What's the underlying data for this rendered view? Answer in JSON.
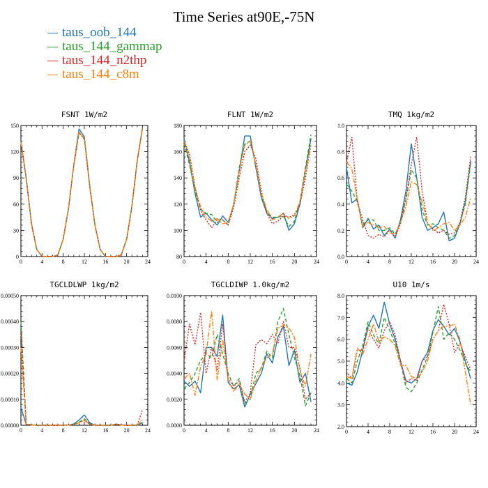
{
  "title": "Time Series at90E,-75N",
  "legend": [
    {
      "name": "taus_oob_144",
      "color": "#1f77b4",
      "dash": "solid"
    },
    {
      "name": "taus_144_gammap",
      "color": "#2ca02c",
      "dash": "dashed"
    },
    {
      "name": "taus_144_n2thp",
      "color": "#d62728",
      "dash": "dotted"
    },
    {
      "name": "taus_144_c8m",
      "color": "#ff7f0e",
      "dash": "dashdot"
    }
  ],
  "chart_data": [
    {
      "type": "line",
      "title": "FSNT",
      "units": "1W/m2",
      "xlim": [
        0,
        24
      ],
      "xticks": [
        0,
        4,
        8,
        12,
        16,
        20,
        24
      ],
      "ylim": [
        0,
        150
      ],
      "yticks": [
        "0",
        "30",
        "60",
        "90",
        "120",
        "150"
      ],
      "x": [
        0,
        1,
        2,
        3,
        4,
        5,
        6,
        7,
        8,
        9,
        10,
        11,
        12,
        13,
        14,
        15,
        16,
        17,
        18,
        19,
        20,
        21,
        22,
        23
      ],
      "series": [
        {
          "name": "taus_oob_144",
          "values": [
            132,
            90,
            38,
            8,
            0,
            0,
            0,
            2,
            20,
            55,
            105,
            146,
            137,
            82,
            36,
            8,
            0,
            0,
            0,
            2,
            20,
            58,
            110,
            148
          ]
        },
        {
          "name": "taus_144_gammap",
          "values": [
            131,
            89,
            37,
            8,
            0,
            0,
            0,
            2,
            20,
            55,
            104,
            142,
            135,
            81,
            36,
            8,
            0,
            0,
            0,
            2,
            20,
            57,
            109,
            147
          ]
        },
        {
          "name": "taus_144_n2thp",
          "values": [
            131,
            89,
            37,
            8,
            0,
            0,
            0,
            2,
            20,
            55,
            104,
            142,
            134,
            81,
            36,
            8,
            0,
            0,
            0,
            2,
            20,
            57,
            109,
            147
          ]
        },
        {
          "name": "taus_144_c8m",
          "values": [
            131,
            89,
            37,
            8,
            0,
            0,
            0,
            2,
            20,
            55,
            104,
            143,
            135,
            81,
            36,
            8,
            0,
            0,
            0,
            2,
            20,
            57,
            109,
            147
          ]
        }
      ]
    },
    {
      "type": "line",
      "title": "FLNT",
      "units": "1W/m2",
      "xlim": [
        0,
        24
      ],
      "xticks": [
        0,
        4,
        8,
        12,
        16,
        20,
        24
      ],
      "ylim": [
        80,
        180
      ],
      "yticks": [
        "80",
        "100",
        "120",
        "140",
        "160",
        "180"
      ],
      "x": [
        0,
        1,
        2,
        3,
        4,
        5,
        6,
        7,
        8,
        9,
        10,
        11,
        12,
        13,
        14,
        15,
        16,
        17,
        18,
        19,
        20,
        21,
        22,
        23
      ],
      "series": [
        {
          "name": "taus_oob_144",
          "values": [
            170,
            152,
            128,
            110,
            113,
            108,
            104,
            111,
            106,
            120,
            145,
            172,
            172,
            148,
            125,
            113,
            109,
            110,
            113,
            100,
            105,
            120,
            146,
            170
          ]
        },
        {
          "name": "taus_144_gammap",
          "values": [
            166,
            150,
            130,
            116,
            113,
            112,
            106,
            108,
            104,
            120,
            148,
            166,
            168,
            150,
            127,
            114,
            110,
            110,
            111,
            103,
            107,
            122,
            148,
            173
          ]
        },
        {
          "name": "taus_144_n2thp",
          "values": [
            168,
            158,
            133,
            115,
            108,
            102,
            108,
            108,
            104,
            118,
            140,
            160,
            165,
            155,
            130,
            113,
            105,
            107,
            111,
            110,
            112,
            120,
            140,
            165
          ]
        },
        {
          "name": "taus_144_c8m",
          "values": [
            168,
            155,
            132,
            118,
            110,
            107,
            109,
            105,
            106,
            120,
            145,
            165,
            168,
            150,
            128,
            116,
            108,
            110,
            113,
            109,
            111,
            122,
            145,
            165
          ]
        }
      ]
    },
    {
      "type": "line",
      "title": "TMQ",
      "units": "1kg/m2",
      "xlim": [
        0,
        24
      ],
      "xticks": [
        0,
        4,
        8,
        12,
        16,
        20,
        24
      ],
      "ylim": [
        0.0,
        1.0
      ],
      "yticks": [
        "0.0",
        "0.2",
        "0.4",
        "0.6",
        "0.8",
        "1.0"
      ],
      "x": [
        0,
        1,
        2,
        3,
        4,
        5,
        6,
        7,
        8,
        9,
        10,
        11,
        12,
        13,
        14,
        15,
        16,
        17,
        18,
        19,
        20,
        21,
        22,
        23
      ],
      "series": [
        {
          "name": "taus_oob_144",
          "values": [
            0.68,
            0.41,
            0.44,
            0.22,
            0.29,
            0.21,
            0.24,
            0.16,
            0.21,
            0.14,
            0.28,
            0.5,
            0.86,
            0.6,
            0.3,
            0.2,
            0.22,
            0.25,
            0.34,
            0.12,
            0.14,
            0.25,
            0.42,
            0.73
          ]
        },
        {
          "name": "taus_144_gammap",
          "values": [
            0.55,
            0.5,
            0.42,
            0.24,
            0.28,
            0.28,
            0.2,
            0.2,
            0.22,
            0.17,
            0.26,
            0.43,
            0.66,
            0.6,
            0.36,
            0.24,
            0.25,
            0.22,
            0.2,
            0.14,
            0.16,
            0.25,
            0.4,
            0.72
          ]
        },
        {
          "name": "taus_144_n2thp",
          "values": [
            0.72,
            0.91,
            0.42,
            0.28,
            0.16,
            0.14,
            0.17,
            0.15,
            0.2,
            0.15,
            0.25,
            0.45,
            0.7,
            0.91,
            0.5,
            0.26,
            0.21,
            0.18,
            0.2,
            0.17,
            0.18,
            0.26,
            0.45,
            0.77
          ]
        },
        {
          "name": "taus_144_c8m",
          "values": [
            0.72,
            0.67,
            0.44,
            0.23,
            0.26,
            0.24,
            0.22,
            0.23,
            0.18,
            0.17,
            0.26,
            0.38,
            0.57,
            0.55,
            0.42,
            0.26,
            0.2,
            0.22,
            0.25,
            0.26,
            0.2,
            0.24,
            0.3,
            0.45
          ]
        }
      ]
    },
    {
      "type": "line",
      "title": "TGCLDLWP",
      "units": "1kg/m2",
      "xlim": [
        0,
        24
      ],
      "xticks": [
        0,
        4,
        8,
        12,
        16,
        20,
        24
      ],
      "ylim": [
        0,
        0.0005
      ],
      "yticks": [
        "0.00000",
        "0.00010",
        "0.00020",
        "0.00030",
        "0.00040",
        "0.00050"
      ],
      "x": [
        0,
        1,
        2,
        3,
        4,
        5,
        6,
        7,
        8,
        9,
        10,
        11,
        12,
        13,
        14,
        15,
        16,
        17,
        18,
        19,
        20,
        21,
        22,
        23
      ],
      "series": [
        {
          "name": "taus_oob_144",
          "values": [
            7e-05,
            3e-06,
            2e-06,
            0,
            0,
            0,
            0,
            0,
            0,
            2e-06,
            5e-06,
            2e-05,
            4e-05,
            1e-05,
            0,
            0,
            0,
            0,
            5e-06,
            2e-06,
            0,
            0,
            0,
            1e-05
          ]
        },
        {
          "name": "taus_144_gammap",
          "values": [
            0.0004,
            4e-06,
            2e-06,
            0,
            0,
            0,
            0,
            0,
            0,
            1e-06,
            3e-06,
            1.2e-05,
            2.5e-05,
            6e-06,
            0,
            0,
            0,
            0,
            3e-06,
            1e-06,
            0,
            0,
            0,
            1.2e-05
          ]
        },
        {
          "name": "taus_144_n2thp",
          "values": [
            0.00036,
            4e-06,
            1e-06,
            0,
            0,
            0,
            0,
            0,
            0,
            1e-06,
            3e-06,
            1e-05,
            2e-05,
            5e-06,
            0,
            0,
            0,
            0,
            4e-06,
            1e-06,
            0,
            0,
            0,
            6e-05
          ]
        },
        {
          "name": "taus_144_c8m",
          "values": [
            0.0003,
            3e-06,
            1e-06,
            0,
            0,
            0,
            0,
            0,
            0,
            1e-06,
            3e-06,
            1e-05,
            1.8e-05,
            4e-06,
            0,
            0,
            0,
            0,
            4e-06,
            1e-06,
            0,
            0,
            0,
            2e-05
          ]
        }
      ]
    },
    {
      "type": "line",
      "title": "TGCLDIWP",
      "units": "1.0kg/m2",
      "xlim": [
        0,
        24
      ],
      "xticks": [
        0,
        4,
        8,
        12,
        16,
        20,
        24
      ],
      "ylim": [
        0,
        0.01
      ],
      "yticks": [
        "0.0000",
        "0.0020",
        "0.0040",
        "0.0060",
        "0.0080",
        "0.0100"
      ],
      "x": [
        0,
        1,
        2,
        3,
        4,
        5,
        6,
        7,
        8,
        9,
        10,
        11,
        12,
        13,
        14,
        15,
        16,
        17,
        18,
        19,
        20,
        21,
        22,
        23
      ],
      "series": [
        {
          "name": "taus_oob_144",
          "values": [
            0.0034,
            0.003,
            0.0034,
            0.0025,
            0.006,
            0.006,
            0.0053,
            0.0085,
            0.0033,
            0.0028,
            0.0031,
            0.0014,
            0.0024,
            0.0032,
            0.004,
            0.0055,
            0.0048,
            0.0068,
            0.0076,
            0.0046,
            0.0058,
            0.0033,
            0.004,
            0.0018
          ]
        },
        {
          "name": "taus_144_gammap",
          "values": [
            0.0028,
            0.0033,
            0.004,
            0.005,
            0.0055,
            0.0052,
            0.007,
            0.0055,
            0.004,
            0.003,
            0.0036,
            0.0017,
            0.002,
            0.004,
            0.0044,
            0.0057,
            0.0052,
            0.008,
            0.009,
            0.007,
            0.0052,
            0.0038,
            0.0015,
            0.0025
          ]
        },
        {
          "name": "taus_144_n2thp",
          "values": [
            0.005,
            0.0078,
            0.0062,
            0.0087,
            0.004,
            0.006,
            0.0042,
            0.0078,
            0.0036,
            0.003,
            0.0034,
            0.0018,
            0.0025,
            0.0062,
            0.0066,
            0.0063,
            0.007,
            0.0063,
            0.008,
            0.006,
            0.006,
            0.0044,
            0.002,
            0.0025
          ]
        },
        {
          "name": "taus_144_c8m",
          "values": [
            0.0036,
            0.004,
            0.0023,
            0.0045,
            0.0055,
            0.0088,
            0.0035,
            0.0066,
            0.0035,
            0.0026,
            0.0032,
            0.0024,
            0.002,
            0.0034,
            0.0045,
            0.0052,
            0.0055,
            0.0075,
            0.0077,
            0.0075,
            0.0068,
            0.0042,
            0.003,
            0.0055
          ]
        }
      ]
    },
    {
      "type": "line",
      "title": "U10",
      "units": "1m/s",
      "xlim": [
        0,
        24
      ],
      "xticks": [
        0,
        4,
        8,
        12,
        16,
        20,
        24
      ],
      "ylim": [
        2.0,
        8.0
      ],
      "yticks": [
        "2.0",
        "3.0",
        "4.0",
        "5.0",
        "6.0",
        "7.0",
        "8.0"
      ],
      "x": [
        0,
        1,
        2,
        3,
        4,
        5,
        6,
        7,
        8,
        9,
        10,
        11,
        12,
        13,
        14,
        15,
        16,
        17,
        18,
        19,
        20,
        21,
        22,
        23
      ],
      "series": [
        {
          "name": "taus_oob_144",
          "values": [
            4.0,
            3.9,
            4.5,
            5.5,
            6.6,
            7.1,
            6.5,
            7.7,
            6.7,
            6.0,
            5.0,
            4.1,
            4.0,
            4.2,
            5.0,
            5.4,
            6.4,
            6.9,
            6.6,
            6.2,
            6.5,
            5.9,
            5.0,
            4.2
          ]
        },
        {
          "name": "taus_144_gammap",
          "values": [
            4.2,
            4.0,
            5.0,
            5.7,
            6.8,
            6.2,
            5.8,
            7.0,
            6.4,
            5.8,
            5.0,
            3.8,
            3.6,
            4.0,
            4.6,
            5.2,
            6.3,
            7.5,
            6.0,
            6.3,
            6.0,
            5.5,
            4.9,
            4.5
          ]
        },
        {
          "name": "taus_144_n2thp",
          "values": [
            4.5,
            4.2,
            5.5,
            5.5,
            6.5,
            6.0,
            5.6,
            6.4,
            6.8,
            6.2,
            5.0,
            4.0,
            4.2,
            4.1,
            5.0,
            5.2,
            6.0,
            6.4,
            7.6,
            6.7,
            5.4,
            5.8,
            5.2,
            4.6
          ]
        },
        {
          "name": "taus_144_c8m",
          "values": [
            4.3,
            4.2,
            5.6,
            5.3,
            6.0,
            6.7,
            5.9,
            6.1,
            6.0,
            5.7,
            4.8,
            4.8,
            4.3,
            4.2,
            4.5,
            5.0,
            6.0,
            6.4,
            6.6,
            6.6,
            6.7,
            6.0,
            4.5,
            3.0
          ]
        }
      ]
    }
  ]
}
